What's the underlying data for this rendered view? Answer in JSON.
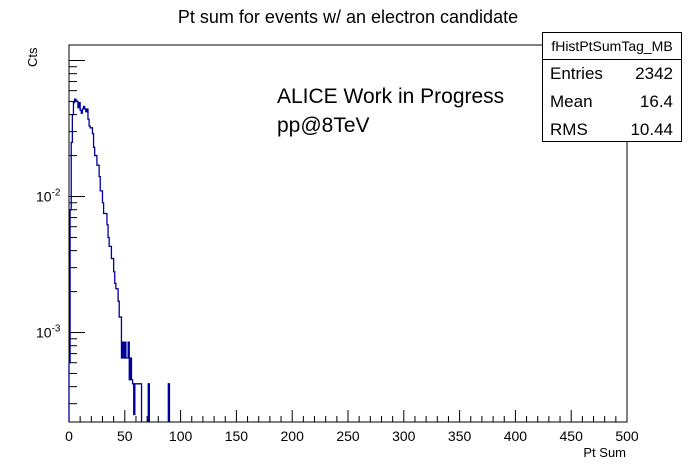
{
  "chart_data": {
    "type": "histogram",
    "title": "Pt sum for events w/ an electron candidate",
    "xlabel": "Pt Sum",
    "ylabel": "Cts",
    "xlim": [
      0,
      500
    ],
    "ylim": [
      0.00022,
      0.13
    ],
    "ylog": true,
    "x_ticks": [
      "0",
      "50",
      "100",
      "150",
      "200",
      "250",
      "300",
      "350",
      "400",
      "450",
      "500"
    ],
    "y_ticks": [
      {
        "value": 0.01,
        "base": "10",
        "exp": "-2"
      },
      {
        "value": 0.001,
        "base": "10",
        "exp": "-3"
      }
    ],
    "bin_width": 1,
    "series": [
      {
        "color": "#000099",
        "bins": [
          [
            1,
            0.0006
          ],
          [
            2,
            0.008
          ],
          [
            3,
            0.025
          ],
          [
            4,
            0.04
          ],
          [
            5,
            0.049
          ],
          [
            6,
            0.052
          ],
          [
            7,
            0.051
          ],
          [
            8,
            0.05
          ],
          [
            9,
            0.045
          ],
          [
            10,
            0.049
          ],
          [
            11,
            0.043
          ],
          [
            12,
            0.041
          ],
          [
            13,
            0.044
          ],
          [
            14,
            0.046
          ],
          [
            15,
            0.044
          ],
          [
            16,
            0.042
          ],
          [
            17,
            0.044
          ],
          [
            18,
            0.037
          ],
          [
            19,
            0.033
          ],
          [
            20,
            0.032
          ],
          [
            21,
            0.032
          ],
          [
            22,
            0.029
          ],
          [
            23,
            0.023
          ],
          [
            24,
            0.02
          ],
          [
            25,
            0.02
          ],
          [
            26,
            0.017
          ],
          [
            27,
            0.017
          ],
          [
            28,
            0.014
          ],
          [
            29,
            0.011
          ],
          [
            30,
            0.011
          ],
          [
            31,
            0.009
          ],
          [
            32,
            0.0075
          ],
          [
            33,
            0.0075
          ],
          [
            34,
            0.0075
          ],
          [
            35,
            0.0062
          ],
          [
            36,
            0.005
          ],
          [
            37,
            0.0043
          ],
          [
            38,
            0.0043
          ],
          [
            39,
            0.0035
          ],
          [
            40,
            0.0035
          ],
          [
            41,
            0.0028
          ],
          [
            42,
            0.0023
          ],
          [
            43,
            0.0021
          ],
          [
            44,
            0.0021
          ],
          [
            45,
            0.0017
          ],
          [
            46,
            0.0013
          ],
          [
            47,
            0.0013
          ],
          [
            48,
            0.00065
          ],
          [
            49,
            0.00085
          ],
          [
            50,
            0.00065
          ],
          [
            51,
            0.00085
          ],
          [
            52,
            0.00065
          ],
          [
            53,
            0.00065
          ],
          [
            54,
            0.00085
          ],
          [
            55,
            0.00045
          ],
          [
            56,
            0.00065
          ],
          [
            57,
            0.00045
          ],
          [
            58,
            0.00042
          ],
          [
            59,
            0.00025
          ],
          [
            60,
            0.00042
          ],
          [
            61,
            0.00042
          ],
          [
            62,
            0.00042
          ],
          [
            63,
            0.00042
          ],
          [
            64,
            0.00042
          ],
          [
            65,
            0.00042
          ],
          [
            72,
            0.00042
          ],
          [
            90,
            0.00042
          ]
        ]
      }
    ],
    "grid": false,
    "legend_position": "top-right"
  },
  "stats": {
    "title": "fHistPtSumTag_MB",
    "rows": [
      {
        "key": "Entries",
        "value": "2342"
      },
      {
        "key": "Mean",
        "value": "16.4"
      },
      {
        "key": "RMS",
        "value": "10.44"
      }
    ]
  },
  "annotations": [
    "ALICE Work in Progress",
    "pp@8TeV"
  ]
}
